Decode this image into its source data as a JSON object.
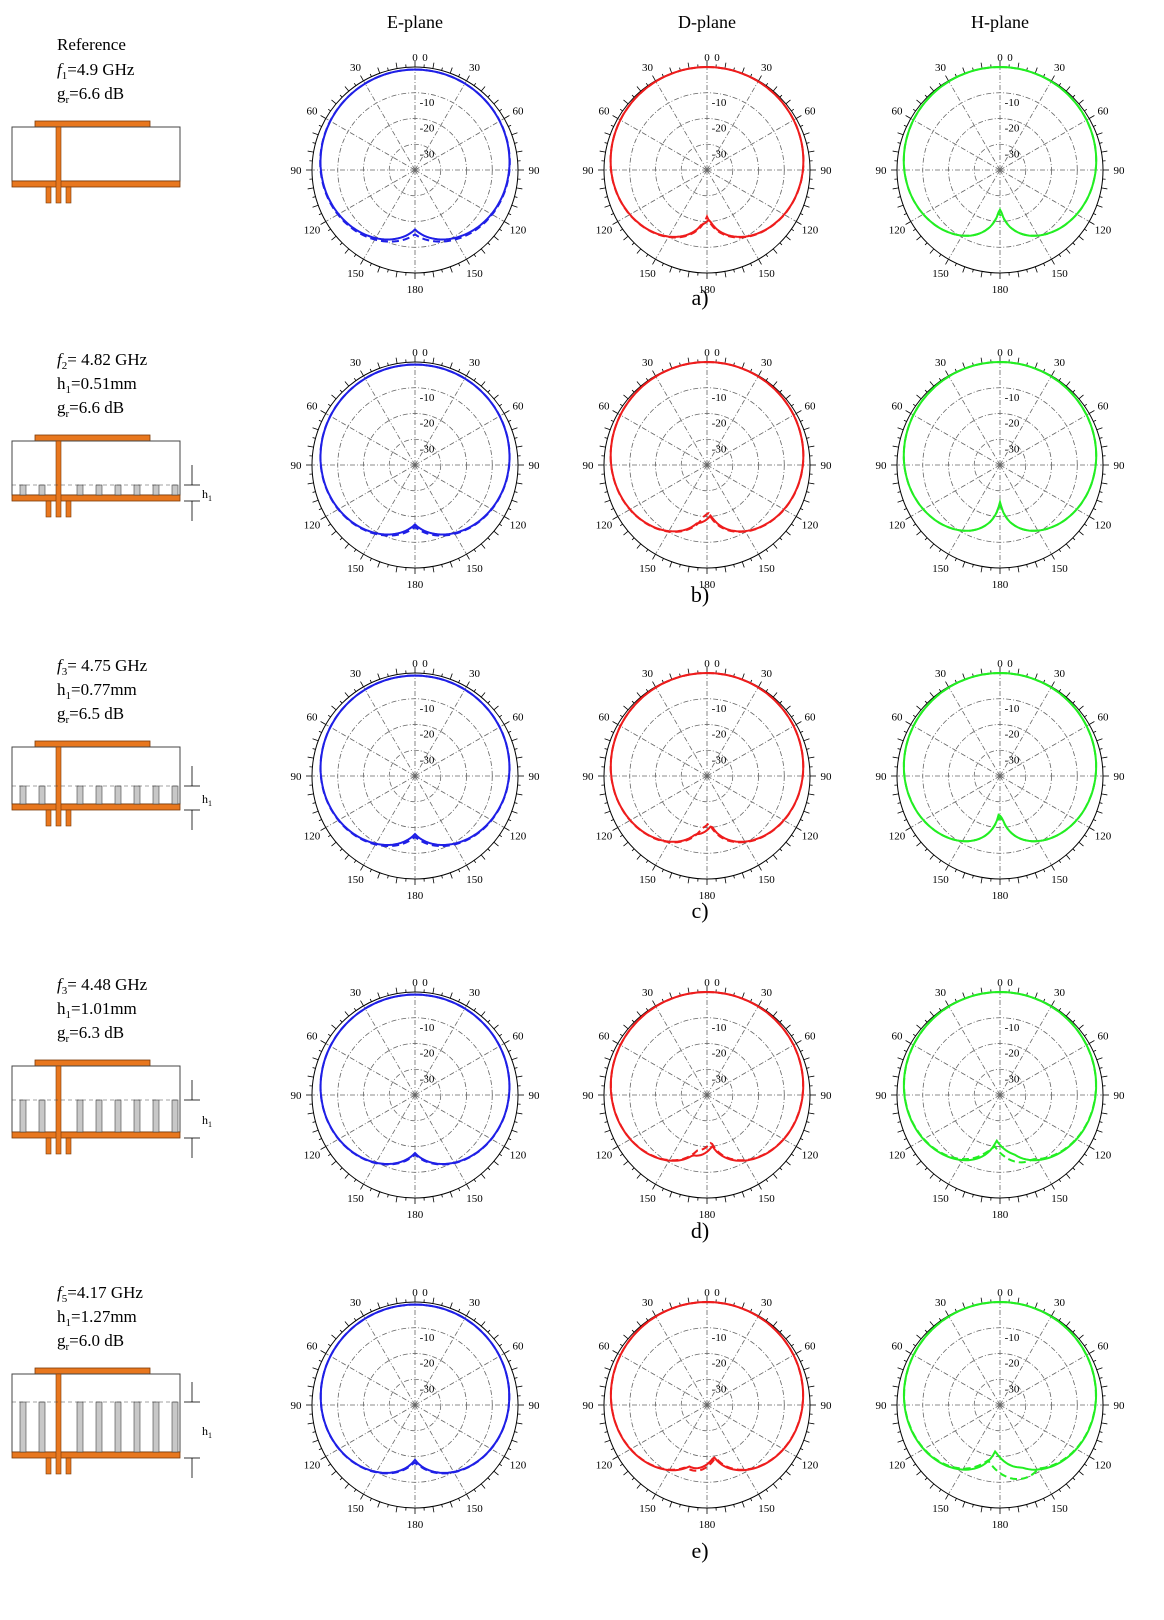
{
  "columns": [
    "E-plane",
    "D-plane",
    "H-plane"
  ],
  "angle_labels": [
    "0",
    "30",
    "30",
    "60",
    "60",
    "90",
    "90",
    "120",
    "120",
    "150",
    "150",
    "180"
  ],
  "radial_labels": [
    "0",
    "-10",
    "-20",
    "-30"
  ],
  "colors": {
    "E-plane": "#1f1fe6",
    "D-plane": "#ee1c1c",
    "H-plane": "#22ee22",
    "copper": "#e8771e",
    "grid": "#666666"
  },
  "rows": [
    {
      "label": "a)",
      "f_sym": "f",
      "f_sub": "1",
      "f_val": "=4.9 GHz",
      "header": "Reference",
      "h_sym": "",
      "h_sub": "",
      "h_val": "",
      "g_sym": "g",
      "g_sub": "r",
      "g_val": "=6.6 dB",
      "pins": 0,
      "dim": ""
    },
    {
      "label": "b)",
      "f_sym": "f",
      "f_sub": "2",
      "f_val": "= 4.82 GHz",
      "header": "",
      "h_sym": "h",
      "h_sub": "1",
      "h_val": "=0.51mm",
      "g_sym": "g",
      "g_sub": "r",
      "g_val": "=6.6 dB",
      "pins": 1,
      "dim": "h1"
    },
    {
      "label": "c)",
      "f_sym": "f",
      "f_sub": "3",
      "f_val": "= 4.75 GHz",
      "header": "",
      "h_sym": "h",
      "h_sub": "1",
      "h_val": "=0.77mm",
      "g_sym": "g",
      "g_sub": "r",
      "g_val": "=6.5 dB",
      "pins": 2,
      "dim": "h1"
    },
    {
      "label": "d)",
      "f_sym": "f",
      "f_sub": "3",
      "f_val": "= 4.48 GHz",
      "header": "",
      "h_sym": "h",
      "h_sub": "1",
      "h_val": "=1.01mm",
      "g_sym": "g",
      "g_sub": "r",
      "g_val": "=6.3 dB",
      "pins": 3,
      "dim": "h1"
    },
    {
      "label": "e)",
      "f_sym": "f",
      "f_sub": "5",
      "f_val": "=4.17 GHz",
      "header": "",
      "h_sym": "h",
      "h_sub": "1",
      "h_val": "=1.27mm",
      "g_sym": "g",
      "g_sub": "r",
      "g_val": "=6.0 dB",
      "pins": 4,
      "dim": "h1"
    }
  ],
  "chart_data": {
    "type": "polar",
    "angle_unit": "deg",
    "radial_unit": "dB",
    "rlim": [
      -40,
      0
    ],
    "rings": [
      0,
      -10,
      -20,
      -30
    ],
    "spokes_every_deg": 30,
    "series_styles": {
      "solid": "co-pol (solid)",
      "dashed": "dashed"
    },
    "panels": [
      {
        "row": "a)",
        "plane": "E-plane",
        "solid": {
          "main": -1,
          "hb": 0.84,
          "pitch": 60,
          "back": -20
        },
        "dashed": {
          "main": -1,
          "hb": 0.8,
          "pitch": 62,
          "back": -17
        }
      },
      {
        "row": "a)",
        "plane": "D-plane",
        "solid": {
          "main": 0,
          "hb": 0.93,
          "pitch": 55,
          "back": -16
        },
        "dashed": {
          "main": 0,
          "hb": 0.92,
          "pitch": 55,
          "back": -18
        }
      },
      {
        "row": "a)",
        "plane": "H-plane",
        "solid": {
          "main": 0,
          "hb": 0.95,
          "pitch": 62,
          "back": -17
        },
        "dashed": {
          "main": 0,
          "hb": 0.95,
          "pitch": 62,
          "back": -15
        }
      },
      {
        "row": "b)",
        "plane": "E-plane",
        "solid": {
          "main": -1,
          "hb": 0.84,
          "pitch": 60,
          "back": -20
        },
        "dashed": {
          "main": -1,
          "hb": 0.82,
          "pitch": 62,
          "back": -17
        }
      },
      {
        "row": "b)",
        "plane": "D-plane",
        "solid": {
          "main": 0,
          "hb": 0.94,
          "pitch": 55,
          "back": -15
        },
        "dashed": {
          "main": 0,
          "hb": 0.93,
          "pitch": 55,
          "back": -17
        }
      },
      {
        "row": "b)",
        "plane": "H-plane",
        "solid": {
          "main": 0,
          "hb": 0.95,
          "pitch": 62,
          "back": -18
        },
        "dashed": {
          "main": 0,
          "hb": 0.95,
          "pitch": 60,
          "back": -15
        }
      },
      {
        "row": "c)",
        "plane": "E-plane",
        "solid": {
          "main": -1,
          "hb": 0.85,
          "pitch": 60,
          "back": -20
        },
        "dashed": {
          "main": -1,
          "hb": 0.83,
          "pitch": 62,
          "back": -16
        }
      },
      {
        "row": "c)",
        "plane": "D-plane",
        "solid": {
          "main": 0,
          "hb": 0.95,
          "pitch": 55,
          "back": -15
        },
        "dashed": {
          "main": 0,
          "hb": 0.94,
          "pitch": 55,
          "back": -17
        }
      },
      {
        "row": "c)",
        "plane": "H-plane",
        "solid": {
          "main": 0,
          "hb": 0.96,
          "pitch": 62,
          "back": -17
        },
        "dashed": {
          "main": 0,
          "hb": 0.96,
          "pitch": 60,
          "back": -14
        }
      },
      {
        "row": "d)",
        "plane": "E-plane",
        "solid": {
          "main": -1,
          "hb": 0.85,
          "pitch": 62,
          "back": -18
        },
        "dashed": {
          "main": -1,
          "hb": 0.84,
          "pitch": 64,
          "back": -14
        }
      },
      {
        "row": "d)",
        "plane": "D-plane",
        "solid": {
          "main": 0,
          "hb": 0.95,
          "pitch": 55,
          "back": -14
        },
        "dashed": {
          "main": 0,
          "hb": 0.96,
          "pitch": 55,
          "back": -16
        }
      },
      {
        "row": "d)",
        "plane": "H-plane",
        "solid": {
          "main": 0,
          "hb": 0.96,
          "pitch": 62,
          "back": -13
        },
        "dashed": {
          "main": 0,
          "hb": 0.98,
          "pitch": 62,
          "back": -10
        }
      },
      {
        "row": "e)",
        "plane": "E-plane",
        "solid": {
          "main": -1,
          "hb": 0.87,
          "pitch": 62,
          "back": -18
        },
        "dashed": {
          "main": -1,
          "hb": 0.86,
          "pitch": 64,
          "back": -12
        }
      },
      {
        "row": "e)",
        "plane": "D-plane",
        "solid": {
          "main": 0,
          "hb": 0.96,
          "pitch": 55,
          "back": -13
        },
        "dashed": {
          "main": 0,
          "hb": 0.97,
          "pitch": 55,
          "back": -12
        }
      },
      {
        "row": "e)",
        "plane": "H-plane",
        "solid": {
          "main": 0,
          "hb": 0.97,
          "pitch": 62,
          "back": -12
        },
        "dashed": {
          "main": 0,
          "hb": 0.99,
          "pitch": 64,
          "back": -8
        }
      }
    ]
  }
}
